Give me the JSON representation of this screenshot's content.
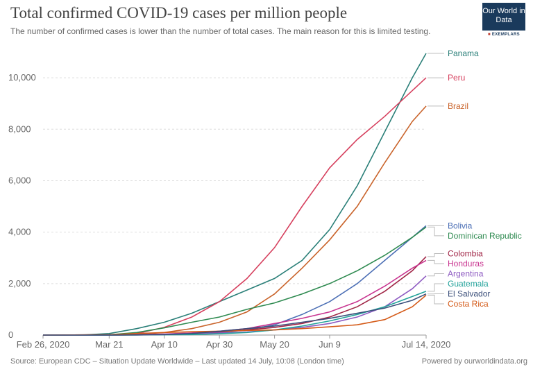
{
  "header": {
    "title": "Total confirmed COVID-19 cases per million people",
    "subtitle": "The number of confirmed cases is lower than the number of total cases. The main reason for this is limited testing."
  },
  "logo": {
    "text": "Our World in Data",
    "sub": "EXEMPLARS",
    "colors": {
      "box": "#1a3a5c",
      "accent": "#c0392b"
    }
  },
  "footer": {
    "source": "Source: European CDC – Situation Update Worldwide – Last updated 14 July, 10:08 (London time)",
    "powered": "Powered by ourworldindata.org"
  },
  "chart_data": {
    "type": "line",
    "title": "Total confirmed COVID-19 cases per million people",
    "xlabel": "",
    "ylabel": "",
    "x_ticks": [
      "Feb 26, 2020",
      "Mar 21",
      "Apr 10",
      "Apr 30",
      "May 20",
      "Jun 9",
      "Jul 14, 2020"
    ],
    "x_tick_days": [
      0,
      24,
      44,
      64,
      84,
      104,
      139
    ],
    "y_ticks": [
      "0",
      "2,000",
      "4,000",
      "6,000",
      "8,000",
      "10,000"
    ],
    "ylim": [
      0,
      11000
    ],
    "xlim": [
      "2020-02-26",
      "2020-07-14"
    ],
    "grid": true,
    "series": [
      {
        "name": "Panama",
        "color": "#2a7f78",
        "points": [
          [
            0,
            0
          ],
          [
            14,
            0
          ],
          [
            24,
            60
          ],
          [
            34,
            250
          ],
          [
            44,
            500
          ],
          [
            54,
            850
          ],
          [
            64,
            1300
          ],
          [
            74,
            1750
          ],
          [
            84,
            2200
          ],
          [
            94,
            2900
          ],
          [
            104,
            4100
          ],
          [
            114,
            5800
          ],
          [
            124,
            7900
          ],
          [
            134,
            10000
          ],
          [
            139,
            10950
          ]
        ]
      },
      {
        "name": "Peru",
        "color": "#d6405e",
        "points": [
          [
            0,
            0
          ],
          [
            24,
            10
          ],
          [
            34,
            60
          ],
          [
            44,
            300
          ],
          [
            54,
            700
          ],
          [
            64,
            1300
          ],
          [
            74,
            2200
          ],
          [
            84,
            3400
          ],
          [
            94,
            5000
          ],
          [
            104,
            6500
          ],
          [
            114,
            7600
          ],
          [
            124,
            8500
          ],
          [
            134,
            9500
          ],
          [
            139,
            10000
          ]
        ]
      },
      {
        "name": "Brazil",
        "color": "#c9632a",
        "points": [
          [
            0,
            0
          ],
          [
            24,
            5
          ],
          [
            34,
            30
          ],
          [
            44,
            100
          ],
          [
            54,
            250
          ],
          [
            64,
            500
          ],
          [
            74,
            900
          ],
          [
            84,
            1600
          ],
          [
            94,
            2600
          ],
          [
            104,
            3700
          ],
          [
            114,
            5000
          ],
          [
            124,
            6700
          ],
          [
            134,
            8300
          ],
          [
            139,
            8900
          ]
        ]
      },
      {
        "name": "Bolivia",
        "color": "#4c6fb5",
        "points": [
          [
            0,
            0
          ],
          [
            24,
            0
          ],
          [
            34,
            5
          ],
          [
            44,
            20
          ],
          [
            54,
            50
          ],
          [
            64,
            100
          ],
          [
            74,
            200
          ],
          [
            84,
            400
          ],
          [
            94,
            800
          ],
          [
            104,
            1300
          ],
          [
            114,
            2000
          ],
          [
            124,
            2900
          ],
          [
            134,
            3800
          ],
          [
            139,
            4250
          ]
        ]
      },
      {
        "name": "Dominican Republic",
        "color": "#2e8a50",
        "points": [
          [
            0,
            0
          ],
          [
            24,
            10
          ],
          [
            34,
            100
          ],
          [
            44,
            280
          ],
          [
            54,
            500
          ],
          [
            64,
            700
          ],
          [
            74,
            1000
          ],
          [
            84,
            1250
          ],
          [
            94,
            1600
          ],
          [
            104,
            2000
          ],
          [
            114,
            2500
          ],
          [
            124,
            3100
          ],
          [
            134,
            3800
          ],
          [
            139,
            4200
          ]
        ]
      },
      {
        "name": "Colombia",
        "color": "#a02546",
        "points": [
          [
            0,
            0
          ],
          [
            24,
            0
          ],
          [
            34,
            10
          ],
          [
            44,
            30
          ],
          [
            54,
            80
          ],
          [
            64,
            120
          ],
          [
            74,
            200
          ],
          [
            84,
            300
          ],
          [
            94,
            450
          ],
          [
            104,
            700
          ],
          [
            114,
            1100
          ],
          [
            124,
            1700
          ],
          [
            134,
            2500
          ],
          [
            139,
            3050
          ]
        ]
      },
      {
        "name": "Honduras",
        "color": "#c8338f",
        "points": [
          [
            0,
            0
          ],
          [
            24,
            0
          ],
          [
            34,
            20
          ],
          [
            44,
            40
          ],
          [
            54,
            80
          ],
          [
            64,
            150
          ],
          [
            74,
            250
          ],
          [
            84,
            450
          ],
          [
            94,
            650
          ],
          [
            104,
            900
          ],
          [
            114,
            1300
          ],
          [
            124,
            1900
          ],
          [
            134,
            2600
          ],
          [
            139,
            2900
          ]
        ]
      },
      {
        "name": "Argentina",
        "color": "#8e5bc2",
        "points": [
          [
            0,
            0
          ],
          [
            24,
            0
          ],
          [
            34,
            10
          ],
          [
            44,
            30
          ],
          [
            54,
            60
          ],
          [
            64,
            80
          ],
          [
            74,
            120
          ],
          [
            84,
            200
          ],
          [
            94,
            300
          ],
          [
            104,
            450
          ],
          [
            114,
            700
          ],
          [
            124,
            1100
          ],
          [
            134,
            1800
          ],
          [
            139,
            2300
          ]
        ]
      },
      {
        "name": "Guatemala",
        "color": "#22a29a",
        "points": [
          [
            0,
            0
          ],
          [
            24,
            0
          ],
          [
            34,
            5
          ],
          [
            44,
            10
          ],
          [
            54,
            20
          ],
          [
            64,
            50
          ],
          [
            74,
            100
          ],
          [
            84,
            200
          ],
          [
            94,
            350
          ],
          [
            104,
            550
          ],
          [
            114,
            800
          ],
          [
            124,
            1100
          ],
          [
            134,
            1500
          ],
          [
            139,
            1700
          ]
        ]
      },
      {
        "name": "Costa Rica",
        "color": "#d45a18",
        "points": [
          [
            0,
            0
          ],
          [
            24,
            10
          ],
          [
            34,
            60
          ],
          [
            44,
            100
          ],
          [
            54,
            130
          ],
          [
            64,
            150
          ],
          [
            74,
            180
          ],
          [
            84,
            200
          ],
          [
            94,
            250
          ],
          [
            104,
            320
          ],
          [
            114,
            400
          ],
          [
            124,
            600
          ],
          [
            134,
            1100
          ],
          [
            139,
            1550
          ]
        ]
      },
      {
        "name": "El Salvador",
        "color": "#3b4f7a",
        "points": [
          [
            0,
            0
          ],
          [
            24,
            0
          ],
          [
            34,
            5
          ],
          [
            44,
            20
          ],
          [
            54,
            60
          ],
          [
            64,
            150
          ],
          [
            74,
            250
          ],
          [
            84,
            350
          ],
          [
            94,
            500
          ],
          [
            104,
            650
          ],
          [
            114,
            850
          ],
          [
            124,
            1050
          ],
          [
            134,
            1350
          ],
          [
            139,
            1600
          ]
        ]
      }
    ]
  }
}
